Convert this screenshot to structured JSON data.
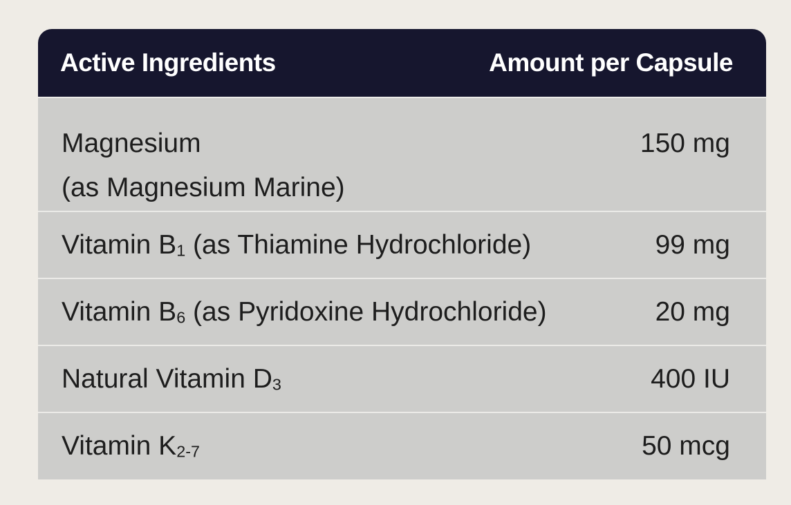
{
  "header": {
    "ingredient_label": "Active Ingredients",
    "amount_label": "Amount per Capsule"
  },
  "rows": [
    {
      "name": "Magnesium",
      "sub": "",
      "detail": "(as Magnesium Marine)",
      "amount": "150 mg"
    },
    {
      "name": "Vitamin B",
      "sub": "1",
      "detail": " (as Thiamine Hydrochloride)",
      "amount": "99 mg"
    },
    {
      "name": "Vitamin B",
      "sub": "6",
      "detail": " (as Pyridoxine Hydrochloride)",
      "amount": "20 mg"
    },
    {
      "name": "Natural Vitamin D",
      "sub": "3",
      "detail": "",
      "amount": "400 IU"
    },
    {
      "name": "Vitamin K",
      "sub": "2-7",
      "detail": "",
      "amount": "50 mcg"
    }
  ],
  "colors": {
    "header_bg": "#16162e",
    "row_bg": "#cdcdcb",
    "page_bg": "#efece6"
  }
}
